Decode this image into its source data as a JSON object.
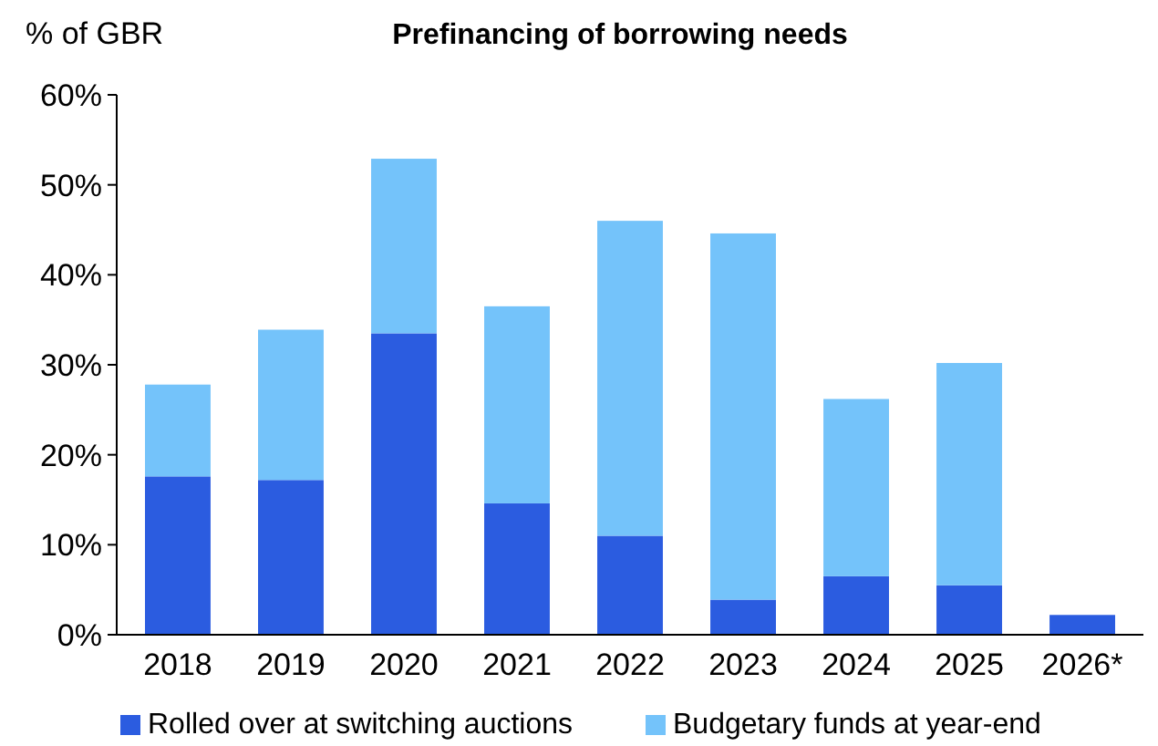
{
  "chart_data": {
    "type": "bar",
    "title": "Prefinancing of borrowing needs",
    "ylabel": "% of GBR",
    "stacked": true,
    "categories": [
      "2018",
      "2019",
      "2020",
      "2021",
      "2022",
      "2023",
      "2024",
      "2025",
      "2026*"
    ],
    "series": [
      {
        "name": "Rolled over at switching auctions",
        "color": "#2b5ce0",
        "values": [
          17.6,
          17.2,
          33.5,
          14.6,
          11.0,
          3.9,
          6.5,
          5.5,
          2.2
        ]
      },
      {
        "name": "Budgetary funds at year-end",
        "color": "#74c3fa",
        "values": [
          10.2,
          16.7,
          19.4,
          21.9,
          35.0,
          40.7,
          19.7,
          24.7,
          null
        ]
      }
    ],
    "ylim": [
      0,
      60
    ],
    "yticks": [
      {
        "value": 0,
        "label": "0%"
      },
      {
        "value": 10,
        "label": "10%"
      },
      {
        "value": 20,
        "label": "20%"
      },
      {
        "value": 30,
        "label": "30%"
      },
      {
        "value": 40,
        "label": "40%"
      },
      {
        "value": 50,
        "label": "50%"
      },
      {
        "value": 60,
        "label": "60%"
      }
    ],
    "grid": false,
    "legend": "bottom"
  }
}
